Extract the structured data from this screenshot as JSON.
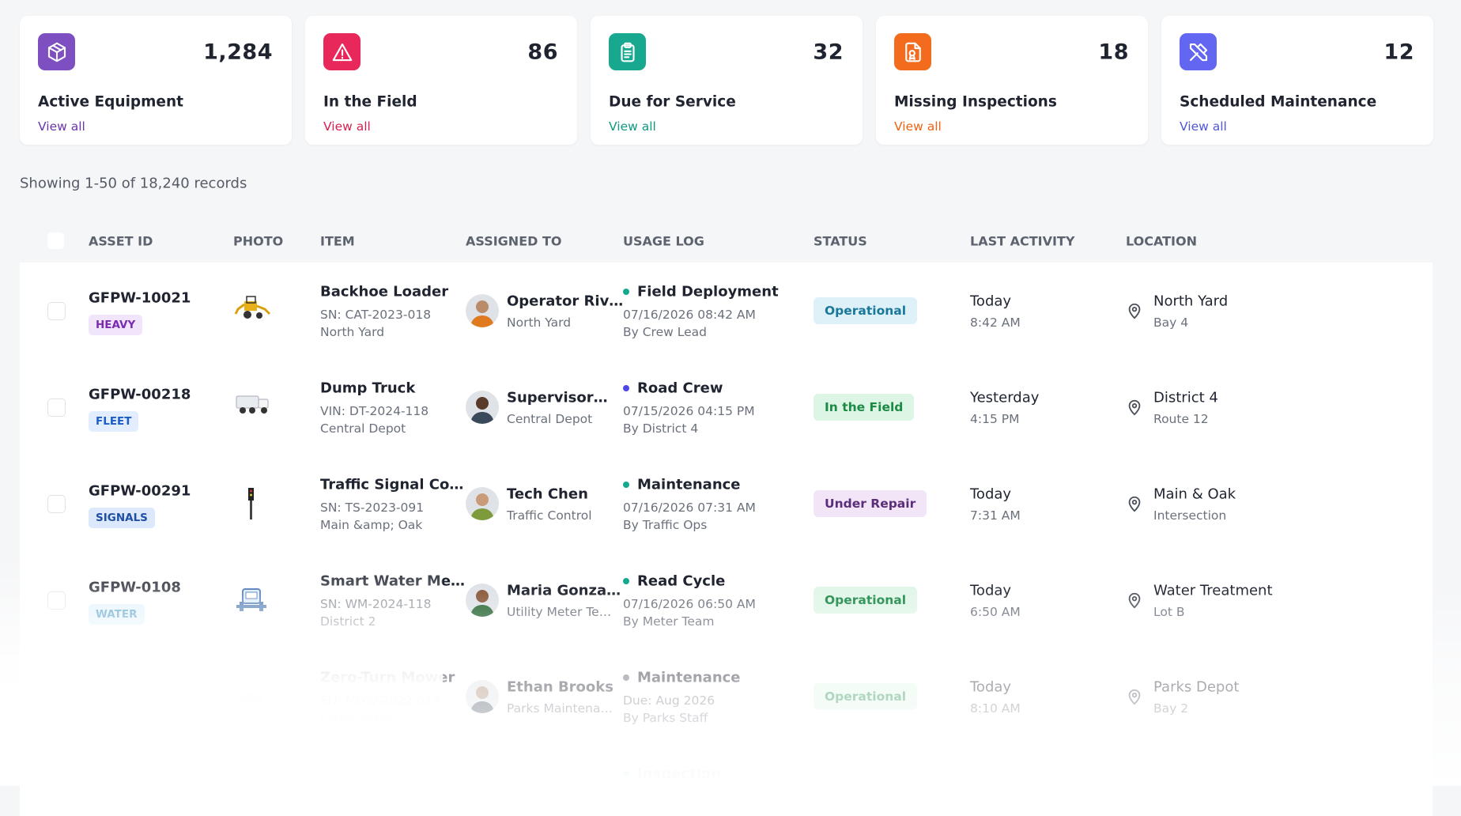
{
  "stats": [
    {
      "value": "1,284",
      "label": "Active Equipment",
      "link": "View all"
    },
    {
      "value": "86",
      "label": "In the Field",
      "link": "View all"
    },
    {
      "value": "32",
      "label": "Due for Service",
      "link": "View all"
    },
    {
      "value": "18",
      "label": "Missing Inspections",
      "link": "View all"
    },
    {
      "value": "12",
      "label": "Scheduled Maintenance",
      "link": "View all"
    }
  ],
  "summary": "Showing 1-50 of 18,240 records",
  "table": {
    "headers": [
      "ASSET ID",
      "PHOTO",
      "ITEM",
      "ASSIGNED TO",
      "USAGE LOG",
      "STATUS",
      "LAST ACTIVITY",
      "LOCATION"
    ],
    "rows": [
      {
        "asset_id": "GFPW-10021",
        "tag": "HEAVY",
        "item": "Backhoe Loader",
        "item_serial": "SN: CAT-2023-018",
        "item_site": "North Yard",
        "assignee": "Operator Riv…",
        "assignee_team": "North Yard",
        "usage_title": "Field Deployment",
        "usage_date": "07/16/2026 08:42 AM",
        "usage_by": "By Crew Lead",
        "status": "Operational",
        "last_day": "Today",
        "last_time": "8:42 AM",
        "location": "North Yard",
        "location_sub": "Bay 4"
      },
      {
        "asset_id": "GFPW-00218",
        "tag": "FLEET",
        "item": "Dump Truck",
        "item_serial": "VIN: DT-2024-118",
        "item_site": "Central Depot",
        "assignee": "Supervisor…",
        "assignee_team": "Central Depot",
        "usage_title": "Road Crew",
        "usage_date": "07/15/2026 04:15 PM",
        "usage_by": "By District 4",
        "status": "In the Field",
        "last_day": "Yesterday",
        "last_time": "4:15 PM",
        "location": "District 4",
        "location_sub": "Route 12"
      },
      {
        "asset_id": "GFPW-00291",
        "tag": "SIGNALS",
        "item": "Traffic Signal Co…",
        "item_serial": "SN: TS-2023-091",
        "item_site": "Main &amp; Oak",
        "assignee": "Tech Chen",
        "assignee_team": "Traffic Control",
        "usage_title": "Maintenance",
        "usage_date": "07/16/2026 07:31 AM",
        "usage_by": "By Traffic Ops",
        "status": "Under Repair",
        "last_day": "Today",
        "last_time": "7:31 AM",
        "location": "Main & Oak",
        "location_sub": "Intersection"
      },
      {
        "asset_id": "GFPW-0108",
        "tag": "WATER",
        "item": "Smart Water Me…",
        "item_serial": "SN: WM-2024-118",
        "item_site": "District 2",
        "assignee": "Maria Gonza…",
        "assignee_team": "Utility Meter Te…",
        "usage_title": "Read Cycle",
        "usage_date": "07/16/2026 06:50 AM",
        "usage_by": "By Meter Team",
        "status": "Operational",
        "last_day": "Today",
        "last_time": "6:50 AM",
        "location": "Water Treatment",
        "location_sub": "Lot B"
      },
      {
        "item": "Zero-Turn Mower",
        "item_serial": "SN: MOW-2022-014",
        "item_site": "Parks Depot",
        "assignee": "Ethan Brooks",
        "assignee_team": "Parks Maintena…",
        "usage_title": "Maintenance",
        "usage_date": "Due: Aug 2026",
        "usage_by": "By Parks Staff",
        "status": "Operational",
        "last_day": "Today",
        "last_time": "8:10 AM",
        "location": "Parks Depot",
        "location_sub": "Bay 2"
      },
      {
        "usage_title": "Inspection"
      }
    ]
  }
}
